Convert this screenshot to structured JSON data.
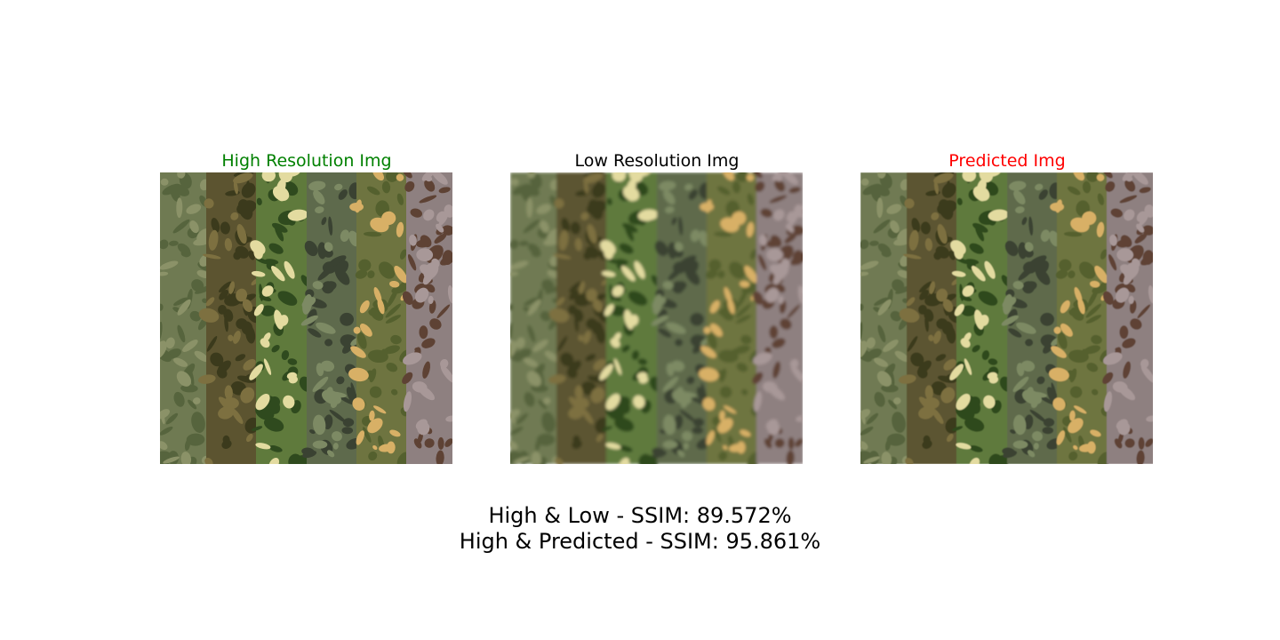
{
  "panels": [
    {
      "id": "hr",
      "title": "High Resolution Img",
      "title_color": "#008000"
    },
    {
      "id": "lr",
      "title": "Low Resolution Img",
      "title_color": "#000000"
    },
    {
      "id": "pr",
      "title": "Predicted Img",
      "title_color": "#ff0000"
    }
  ],
  "metrics": {
    "line1": "High & Low - SSIM: 89.572%",
    "line2": "High & Predicted - SSIM: 95.861%"
  },
  "stripe_palettes": [
    {
      "base": "#6f7a52",
      "blob1": "#56643d",
      "blob2": "#8b9268"
    },
    {
      "base": "#5c5430",
      "blob1": "#3b3a1c",
      "blob2": "#7d7040"
    },
    {
      "base": "#5f7a3c",
      "blob1": "#2f4a1e",
      "blob2": "#e3dba0"
    },
    {
      "base": "#5e6a4c",
      "blob1": "#3a4232",
      "blob2": "#7d8a64"
    },
    {
      "base": "#6e7440",
      "blob1": "#54602e",
      "blob2": "#d8b066"
    },
    {
      "base": "#8e8080",
      "blob1": "#5e4234",
      "blob2": "#a89898"
    }
  ]
}
